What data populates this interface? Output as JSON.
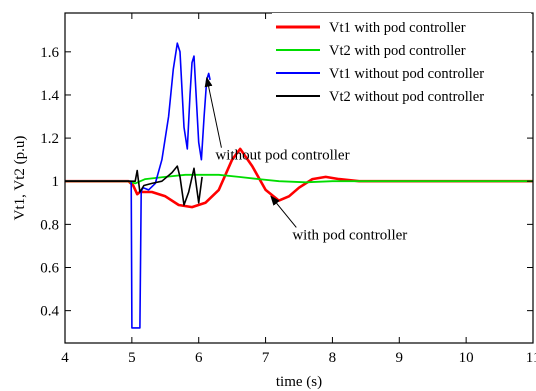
{
  "chart_data": {
    "type": "line",
    "title": "",
    "xlabel": "time (s)",
    "ylabel": "Vt1, Vt2 (p.u)",
    "xlim": [
      4,
      11
    ],
    "ylim": [
      0.25,
      1.78
    ],
    "x_ticks": [
      4,
      5,
      6,
      7,
      8,
      9,
      10,
      11
    ],
    "y_ticks": [
      0.4,
      0.6,
      0.8,
      1,
      1.2,
      1.4,
      1.6
    ],
    "grid": false,
    "legend_position": "top-right",
    "series": [
      {
        "name": "Vt1 with pod controller",
        "color": "#ff0000",
        "x": [
          4,
          4.5,
          4.95,
          5.02,
          5.08,
          5.12,
          5.3,
          5.5,
          5.7,
          5.9,
          6.1,
          6.3,
          6.5,
          6.62,
          6.8,
          7.0,
          7.2,
          7.35,
          7.5,
          7.7,
          7.9,
          8.1,
          8.4,
          8.8,
          9.2,
          10,
          11
        ],
        "y": [
          1.0,
          1.0,
          1.0,
          0.98,
          0.94,
          0.95,
          0.95,
          0.93,
          0.89,
          0.88,
          0.9,
          0.96,
          1.1,
          1.15,
          1.07,
          0.96,
          0.91,
          0.93,
          0.97,
          1.01,
          1.02,
          1.01,
          1.0,
          1.0,
          1.0,
          1.0,
          1.0
        ]
      },
      {
        "name": "Vt2 with pod controller",
        "color": "#00dd00",
        "x": [
          4,
          4.95,
          5.05,
          5.2,
          5.5,
          5.8,
          6.0,
          6.3,
          6.6,
          6.9,
          7.2,
          7.6,
          8.0,
          9,
          11
        ],
        "y": [
          1.0,
          1.0,
          0.99,
          1.01,
          1.02,
          1.03,
          1.03,
          1.03,
          1.02,
          1.01,
          1.0,
          0.995,
          1.0,
          1.0,
          1.0
        ]
      },
      {
        "name": "Vt1 without pod controller",
        "color": "#0000ff",
        "x": [
          4,
          4.95,
          4.99,
          5.0,
          5.02,
          5.04,
          5.12,
          5.14,
          5.15,
          5.17,
          5.25,
          5.35,
          5.45,
          5.55,
          5.62,
          5.68,
          5.72,
          5.78,
          5.83,
          5.87,
          5.9,
          5.93,
          5.97,
          6.0,
          6.04,
          6.08,
          6.12,
          6.15,
          6.17
        ],
        "y": [
          1.0,
          1.0,
          1.0,
          0.32,
          0.32,
          0.32,
          0.32,
          0.95,
          0.96,
          0.97,
          0.96,
          0.99,
          1.1,
          1.3,
          1.52,
          1.64,
          1.6,
          1.25,
          1.15,
          1.4,
          1.55,
          1.58,
          1.35,
          1.18,
          1.1,
          1.3,
          1.47,
          1.5,
          1.47
        ]
      },
      {
        "name": "Vt2 without pod controller",
        "color": "#000000",
        "x": [
          4,
          4.95,
          5.05,
          5.08,
          5.1,
          5.12,
          5.18,
          5.3,
          5.45,
          5.6,
          5.68,
          5.72,
          5.78,
          5.85,
          5.93,
          6.0,
          6.05
        ],
        "y": [
          1.0,
          1.0,
          1.0,
          1.05,
          1.0,
          0.95,
          0.98,
          0.99,
          1.0,
          1.04,
          1.07,
          1.02,
          0.89,
          0.95,
          1.06,
          0.9,
          1.02
        ]
      }
    ],
    "annotations": [
      {
        "text": "without pod controller",
        "x": 6.25,
        "y": 1.1,
        "arrow_to": [
          6.12,
          1.48
        ]
      },
      {
        "text": "with pod controller",
        "x": 7.4,
        "y": 0.73,
        "arrow_to": [
          7.08,
          0.93
        ]
      }
    ]
  }
}
